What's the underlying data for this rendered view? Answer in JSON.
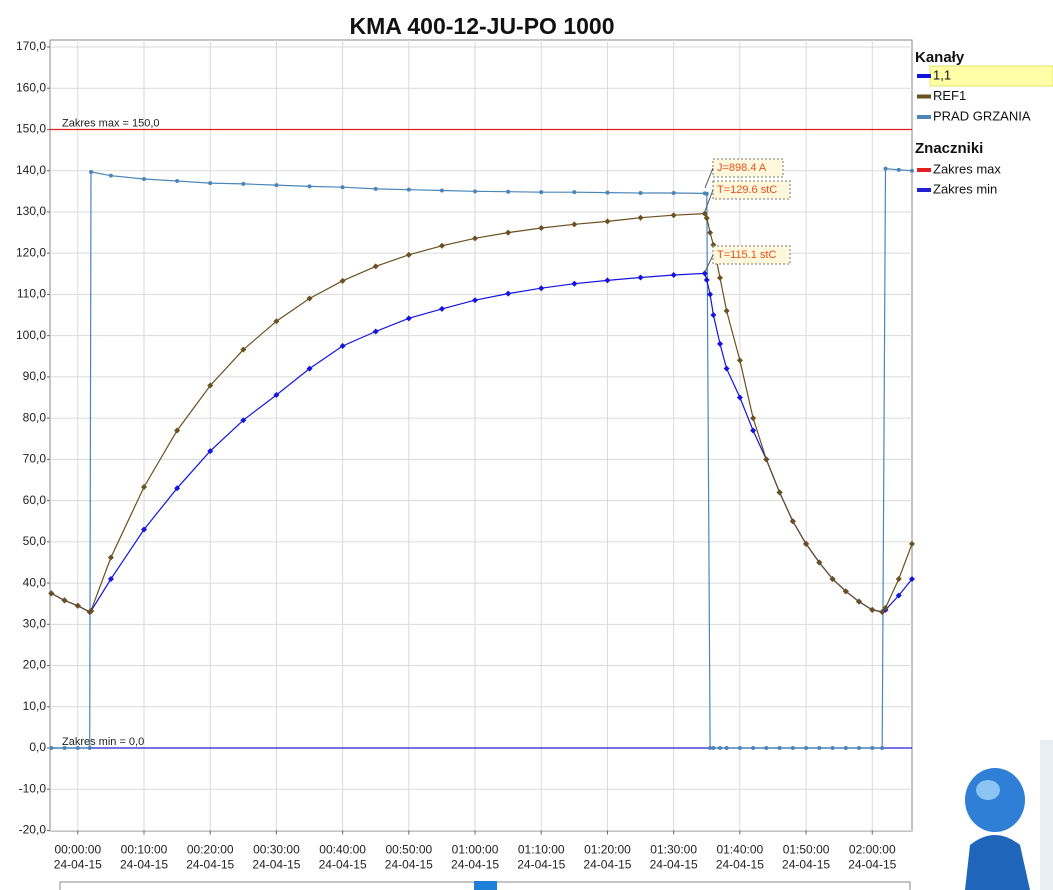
{
  "chart_data": {
    "type": "line",
    "title": "KMA 400-12-JU-PO 1000",
    "x": [
      -4,
      -2,
      0,
      1.8,
      2,
      5,
      10,
      15,
      20,
      25,
      30,
      35,
      40,
      45,
      50,
      55,
      60,
      65,
      70,
      75,
      80,
      85,
      90,
      94.7,
      95,
      95.5,
      96,
      97,
      98,
      100,
      102,
      104,
      106,
      108,
      110,
      112,
      114,
      116,
      118,
      120,
      121.5,
      122,
      124,
      126
    ],
    "series": [
      {
        "name": "PRAD GRZANIA",
        "color": "#4a86b8",
        "marker": "circle",
        "values": [
          0,
          0,
          0,
          0,
          139.7,
          138.8,
          138,
          137.5,
          137,
          136.8,
          136.5,
          136.2,
          136,
          135.6,
          135.4,
          135.2,
          135,
          134.9,
          134.8,
          134.8,
          134.7,
          134.6,
          134.6,
          134.5,
          134.4,
          0,
          0,
          0,
          0,
          0,
          0,
          0,
          0,
          0,
          0,
          0,
          0,
          0,
          0,
          0,
          0,
          140.5,
          140.2,
          140
        ]
      },
      {
        "name": "1,1",
        "color": "#1414e0",
        "marker": "diamond",
        "values": [
          37.5,
          35.8,
          34.5,
          33,
          33.2,
          41,
          53,
          63,
          72,
          79.5,
          85.6,
          92,
          97.5,
          101,
          104.2,
          106.5,
          108.6,
          110.2,
          111.5,
          112.6,
          113.4,
          114.1,
          114.7,
          115.1,
          113.5,
          110,
          105,
          98,
          92,
          85,
          77,
          70,
          62,
          55,
          49.5,
          45,
          41,
          38,
          35.5,
          33.5,
          33,
          33.5,
          37,
          41
        ]
      },
      {
        "name": "REF1",
        "color": "#6b5020",
        "marker": "diamond",
        "values": [
          37.5,
          35.8,
          34.5,
          33,
          33.3,
          46.2,
          63.3,
          77.0,
          87.9,
          96.6,
          103.5,
          109.0,
          113.3,
          116.8,
          119.6,
          121.8,
          123.6,
          125.0,
          126.1,
          127.0,
          127.7,
          128.6,
          129.2,
          129.6,
          128.5,
          125,
          122,
          114,
          106,
          94,
          80,
          70,
          62,
          55,
          49.5,
          45,
          41,
          38,
          35.5,
          33.5,
          33,
          34,
          41,
          49.5
        ]
      }
    ],
    "legend_order": [
      1,
      2,
      0
    ],
    "legend_title": "Kanały",
    "xlim": [
      -4.2,
      126
    ],
    "xticks": [
      {
        "value": 0,
        "label": "00:00:00"
      },
      {
        "value": 10,
        "label": "00:10:00"
      },
      {
        "value": 20,
        "label": "00:20:00"
      },
      {
        "value": 30,
        "label": "00:30:00"
      },
      {
        "value": 40,
        "label": "00:40:00"
      },
      {
        "value": 50,
        "label": "00:50:00"
      },
      {
        "value": 60,
        "label": "01:00:00"
      },
      {
        "value": 70,
        "label": "01:10:00"
      },
      {
        "value": 80,
        "label": "01:20:00"
      },
      {
        "value": 90,
        "label": "01:30:00"
      },
      {
        "value": 100,
        "label": "01:40:00"
      },
      {
        "value": 110,
        "label": "01:50:00"
      },
      {
        "value": 120,
        "label": "02:00:00"
      }
    ],
    "xtick_dates": [
      "24-04-15",
      "24-04-15",
      "24-04-15",
      "24-04-15",
      "24-04-15",
      "24-04-15",
      "24-04-15",
      "24-04-15",
      "24-04-15",
      "24-04-15",
      "24-04-15",
      "24-04-15",
      "24-04-15"
    ],
    "ylim": [
      -20,
      170
    ],
    "yticks": [
      {
        "value": 170,
        "label": "170,0"
      },
      {
        "value": 160,
        "label": "160,0"
      },
      {
        "value": 150,
        "label": "150,0"
      },
      {
        "value": 140,
        "label": "140,0"
      },
      {
        "value": 130,
        "label": "130,0"
      },
      {
        "value": 120,
        "label": "120,0"
      },
      {
        "value": 110,
        "label": "110,0"
      },
      {
        "value": 100,
        "label": "100,0"
      },
      {
        "value": 90,
        "label": "90,0"
      },
      {
        "value": 80,
        "label": "80,0"
      },
      {
        "value": 70,
        "label": "70,0"
      },
      {
        "value": 60,
        "label": "60,0"
      },
      {
        "value": 50,
        "label": "50,0"
      },
      {
        "value": 40,
        "label": "40,0"
      },
      {
        "value": 30,
        "label": "30,0"
      },
      {
        "value": 20,
        "label": "20,0"
      },
      {
        "value": 10,
        "label": "10,0"
      },
      {
        "value": 0,
        "label": "0,0"
      },
      {
        "value": -10,
        "label": "-10,0"
      },
      {
        "value": -20,
        "label": "-20,0"
      }
    ],
    "grid": true,
    "markers_title": "Znaczniki",
    "reference_lines": [
      {
        "name": "Zakres max",
        "label": "Zakres max = 150,0",
        "value": 150,
        "color": "#e02020"
      },
      {
        "name": "Zakres min",
        "label": "Zakres min = 0,0",
        "value": 0,
        "color": "#2020d0"
      }
    ],
    "annotations": [
      "J=898.4 A",
      "T=129.6 stC",
      "T=115.1 stC"
    ]
  }
}
